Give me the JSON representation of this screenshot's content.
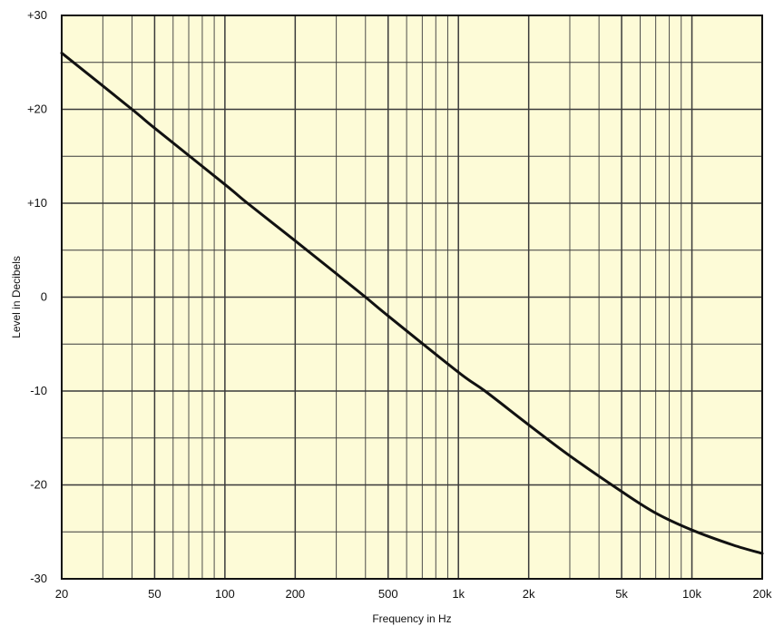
{
  "chart_data": {
    "type": "line",
    "title": "",
    "xlabel": "Frequency in Hz",
    "ylabel": "Level in Decibels",
    "x_scale": "log",
    "xlim": [
      20,
      20000
    ],
    "ylim": [
      -30,
      30
    ],
    "grid": true,
    "legend": "none",
    "x_ticks": [
      {
        "value": 20,
        "label": "20"
      },
      {
        "value": 50,
        "label": "50"
      },
      {
        "value": 100,
        "label": "100"
      },
      {
        "value": 200,
        "label": "200"
      },
      {
        "value": 500,
        "label": "500"
      },
      {
        "value": 1000,
        "label": "1k"
      },
      {
        "value": 2000,
        "label": "2k"
      },
      {
        "value": 5000,
        "label": "5k"
      },
      {
        "value": 10000,
        "label": "10k"
      },
      {
        "value": 20000,
        "label": "20k"
      }
    ],
    "y_ticks": [
      {
        "value": 30,
        "label": "+30"
      },
      {
        "value": 20,
        "label": "+20"
      },
      {
        "value": 10,
        "label": "+10"
      },
      {
        "value": 0,
        "label": "0"
      },
      {
        "value": -10,
        "label": "-10"
      },
      {
        "value": -20,
        "label": "-20"
      },
      {
        "value": -30,
        "label": "-30"
      }
    ],
    "series": [
      {
        "x": [
          20,
          40,
          50,
          100,
          125,
          200,
          300,
          400,
          500,
          1000,
          1300,
          2000,
          3000,
          5000,
          7000,
          10000,
          15000,
          20000
        ],
        "y": [
          26,
          20,
          18,
          12,
          10,
          6,
          2.5,
          0,
          -2,
          -8,
          -10,
          -13.6,
          -16.9,
          -20.7,
          -23,
          -24.8,
          -26.4,
          -27.3
        ]
      }
    ]
  },
  "colors": {
    "plot_background": "#fdfbd7",
    "grid": "#3a3a3a",
    "curve": "#111111",
    "text": "#111111"
  }
}
